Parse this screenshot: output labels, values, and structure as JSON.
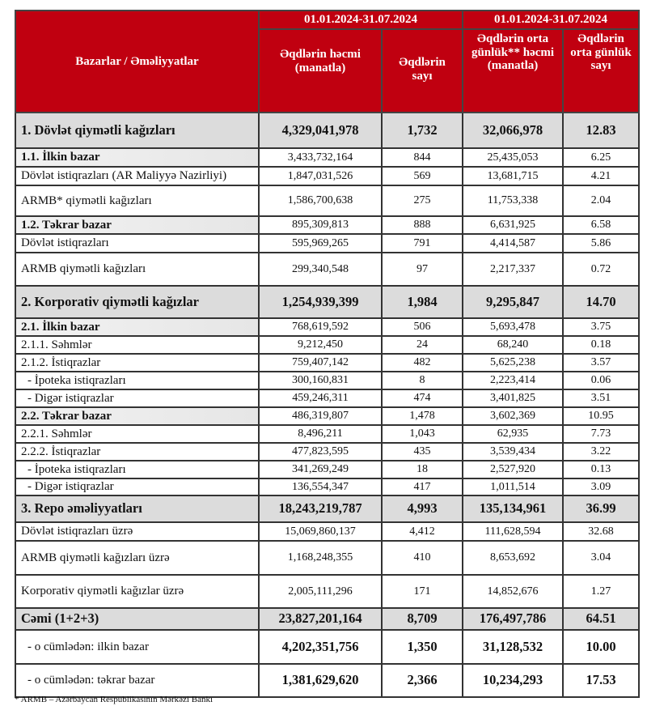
{
  "header": {
    "col_label": "Bazarlar / Əməliyyatlar",
    "period1": "01.01.2024-31.07.2024",
    "period2": "01.01.2024-31.07.2024",
    "c1": "Əqdlərin həcmi (manatla)",
    "c2": "Əqdlərin sayı",
    "c3": "Əqdlərin orta günlük** həcmi (manatla)",
    "c4": "Əqdlərin orta günlük sayı"
  },
  "colors": {
    "header_bg": "#c00010",
    "section_bg": "#dcdcdc"
  },
  "rows": [
    {
      "type": "main",
      "label": "1. Dövlət qiymətli kağızları",
      "v": [
        "4,329,041,978",
        "1,732",
        "32,066,978",
        "12.83"
      ],
      "h": 44
    },
    {
      "type": "sec",
      "label": "1.1. İlkin bazar",
      "v": [
        "3,433,732,164",
        "844",
        "25,435,053",
        "6.25"
      ],
      "h": 23
    },
    {
      "type": "row",
      "label": "Dövlət istiqrazları (AR Maliyyə Nazirliyi)",
      "v": [
        "1,847,031,526",
        "569",
        "13,681,715",
        "4.21"
      ],
      "h": 23
    },
    {
      "type": "row",
      "label": "ARMB* qiymətli kağızları",
      "v": [
        "1,586,700,638",
        "275",
        "11,753,338",
        "2.04"
      ],
      "h": 38
    },
    {
      "type": "sec",
      "label": "1.2. Təkrar bazar",
      "v": [
        "895,309,813",
        "888",
        "6,631,925",
        "6.58"
      ],
      "h": 22
    },
    {
      "type": "row",
      "label": "Dövlət istiqrazları",
      "v": [
        "595,969,265",
        "791",
        "4,414,587",
        "5.86"
      ],
      "h": 23
    },
    {
      "type": "row",
      "label": "ARMB qiymətli kağızları",
      "v": [
        "299,340,548",
        "97",
        "2,217,337",
        "0.72"
      ],
      "h": 41
    },
    {
      "type": "main",
      "label": "2. Korporativ qiymətli kağızlar",
      "v": [
        "1,254,939,399",
        "1,984",
        "9,295,847",
        "14.70"
      ],
      "h": 40
    },
    {
      "type": "sec",
      "label": "2.1. İlkin bazar",
      "v": [
        "768,619,592",
        "506",
        "5,693,478",
        "3.75"
      ],
      "h": 22
    },
    {
      "type": "row",
      "label": "2.1.1. Səhmlər",
      "v": [
        "9,212,450",
        "24",
        "68,240",
        "0.18"
      ],
      "h": 22
    },
    {
      "type": "row",
      "label": "2.1.2. İstiqrazlar",
      "v": [
        "759,407,142",
        "482",
        "5,625,238",
        "3.57"
      ],
      "h": 22
    },
    {
      "type": "ind",
      "label": "-  İpoteka istiqrazları",
      "v": [
        "300,160,831",
        "8",
        "2,223,414",
        "0.06"
      ],
      "h": 22
    },
    {
      "type": "ind",
      "label": "-  Digər istiqrazlar",
      "v": [
        "459,246,311",
        "474",
        "3,401,825",
        "3.51"
      ],
      "h": 22
    },
    {
      "type": "sec",
      "label": "2.2. Təkrar bazar",
      "v": [
        "486,319,807",
        "1,478",
        "3,602,369",
        "10.95"
      ],
      "h": 22
    },
    {
      "type": "row",
      "label": "2.2.1. Səhmlər",
      "v": [
        "8,496,211",
        "1,043",
        "62,935",
        "7.73"
      ],
      "h": 22
    },
    {
      "type": "row",
      "label": "2.2.2. İstiqrazlar",
      "v": [
        "477,823,595",
        "435",
        "3,539,434",
        "3.22"
      ],
      "h": 22
    },
    {
      "type": "ind",
      "label": "-  İpoteka istiqrazları",
      "v": [
        "341,269,249",
        "18",
        "2,527,920",
        "0.13"
      ],
      "h": 22
    },
    {
      "type": "ind",
      "label": "-  Digər istiqrazlar",
      "v": [
        "136,554,347",
        "417",
        "1,011,514",
        "3.09"
      ],
      "h": 21
    },
    {
      "type": "main",
      "label": "3. Repo əməliyyatları",
      "v": [
        "18,243,219,787",
        "4,993",
        "135,134,961",
        "36.99"
      ],
      "h": 33
    },
    {
      "type": "row",
      "label": "Dövlət istiqrazları üzrə",
      "v": [
        "15,069,860,137",
        "4,412",
        "111,628,594",
        "32.68"
      ],
      "h": 23
    },
    {
      "type": "row",
      "label": "ARMB qiymətli kağızları üzrə",
      "v": [
        "1,168,248,355",
        "410",
        "8,653,692",
        "3.04"
      ],
      "h": 42
    },
    {
      "type": "row",
      "label": "Korporativ qiymətli kağızlar üzrə",
      "v": [
        "2,005,111,296",
        "171",
        "14,852,676",
        "1.27"
      ],
      "h": 41
    },
    {
      "type": "tot",
      "label": "Cəmi (1+2+3)",
      "v": [
        "23,827,201,164",
        "8,709",
        "176,497,786",
        "64.51"
      ],
      "h": 27
    },
    {
      "type": "big",
      "label": "-  o cümlədən: ilkin bazar",
      "v": [
        "4,202,351,756",
        "1,350",
        "31,128,532",
        "10.00"
      ],
      "h": 42
    },
    {
      "type": "big",
      "label": "-  o cümlədən: təkrar bazar",
      "v": [
        "1,381,629,620",
        "2,366",
        "10,234,293",
        "17.53"
      ],
      "h": 41
    }
  ],
  "footnote": "* ARMB – Azərbaycan Respublikasının Mərkəzi Bankı"
}
